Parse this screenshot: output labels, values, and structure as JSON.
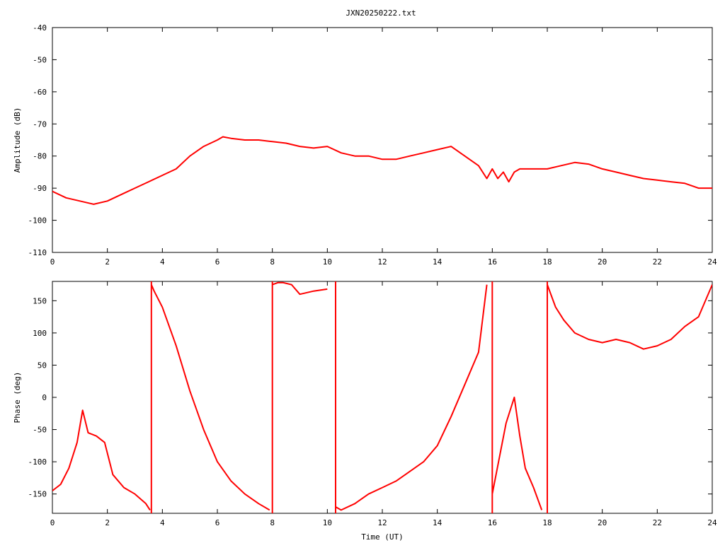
{
  "title": "JXN20250222.txt",
  "colors": {
    "trace": "#ff0000",
    "axis": "#000000",
    "background": "#ffffff"
  },
  "chart_data": [
    {
      "type": "line",
      "ylabel": "Amplitude (dB)",
      "xlabel": "",
      "xlim": [
        0,
        24
      ],
      "ylim": [
        -110,
        -40
      ],
      "xticks": [
        "0",
        "2",
        "4",
        "6",
        "8",
        "10",
        "12",
        "14",
        "16",
        "18",
        "20",
        "22",
        "24"
      ],
      "yticks": [
        "-40",
        "-50",
        "-60",
        "-70",
        "-80",
        "-90",
        "-100",
        "-110"
      ],
      "grid": false,
      "series": [
        {
          "x": [
            0,
            0.5,
            1,
            1.5,
            2,
            2.5,
            3,
            3.5,
            4,
            4.5,
            5,
            5.5,
            6,
            6.2,
            6.5,
            7,
            7.5,
            8,
            8.5,
            9,
            9.5,
            10,
            10.5,
            11,
            11.5,
            12,
            12.5,
            13,
            13.5,
            14,
            14.5,
            15,
            15.5,
            15.8,
            16,
            16.2,
            16.4,
            16.6,
            16.8,
            17,
            17.5,
            18,
            18.5,
            19,
            19.5,
            20,
            20.5,
            21,
            21.5,
            22,
            22.5,
            23,
            23.5,
            24
          ],
          "y": [
            -91,
            -93,
            -94,
            -95,
            -94,
            -92,
            -90,
            -88,
            -86,
            -84,
            -80,
            -77,
            -75,
            -74,
            -74.5,
            -75,
            -75,
            -75.5,
            -76,
            -77,
            -77.5,
            -77,
            -79,
            -80,
            -80,
            -81,
            -81,
            -80,
            -79,
            -78,
            -77,
            -80,
            -83,
            -87,
            -84,
            -87,
            -85,
            -88,
            -85,
            -84,
            -84,
            -84,
            -83,
            -82,
            -82.5,
            -84,
            -85,
            -86,
            -87,
            -87.5,
            -88,
            -88.5,
            -90,
            -90
          ]
        }
      ]
    },
    {
      "type": "line",
      "ylabel": "Phase (deg)",
      "xlabel": "Time (UT)",
      "xlim": [
        0,
        24
      ],
      "ylim": [
        -180,
        180
      ],
      "xticks": [
        "0",
        "2",
        "4",
        "6",
        "8",
        "10",
        "12",
        "14",
        "16",
        "18",
        "20",
        "22",
        "24"
      ],
      "yticks": [
        "150",
        "100",
        "50",
        "0",
        "-50",
        "-100",
        "-150"
      ],
      "grid": false,
      "series": [
        {
          "x": [
            0,
            0.3,
            0.6,
            0.9,
            1.1,
            1.3,
            1.6,
            1.9,
            2.2,
            2.6,
            3,
            3.4,
            3.55,
            3.6,
            3.7,
            4,
            4.5,
            5,
            5.5,
            6,
            6.5,
            7,
            7.5,
            7.9,
            8.0,
            8.2,
            8.4,
            8.7,
            9,
            9.5,
            10,
            10.3,
            10.5,
            11,
            11.5,
            12,
            12.5,
            13,
            13.5,
            14,
            14.5,
            15,
            15.5,
            15.8,
            16,
            16.5,
            16.8,
            17,
            17.2,
            17.5,
            17.8,
            18,
            18.3,
            18.6,
            19,
            19.5,
            20,
            20.5,
            21,
            21.5,
            22,
            22.5,
            23,
            23.5,
            24
          ],
          "y": [
            -145,
            -135,
            -110,
            -70,
            -20,
            -55,
            -60,
            -70,
            -120,
            -140,
            -150,
            -165,
            -175,
            175,
            165,
            140,
            80,
            10,
            -50,
            -100,
            -130,
            -150,
            -165,
            -175,
            175,
            178,
            178,
            175,
            160,
            165,
            168,
            -170,
            -175,
            -165,
            -150,
            -140,
            -130,
            -115,
            -100,
            -75,
            -30,
            20,
            70,
            175,
            -150,
            -40,
            0,
            -60,
            -110,
            -140,
            -175,
            175,
            140,
            120,
            100,
            90,
            85,
            90,
            85,
            75,
            80,
            90,
            110,
            125,
            175
          ]
        }
      ]
    }
  ]
}
